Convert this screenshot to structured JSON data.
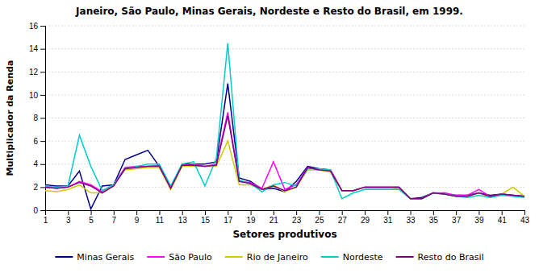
{
  "chart_data": {
    "type": "line",
    "title": "Janeiro, São Paulo, Minas Gerais, Nordeste e Resto do Brasil, em 1999.",
    "xlabel": "Setores produtivos",
    "ylabel": "Multiplicador da Renda",
    "x": [
      1,
      2,
      3,
      4,
      5,
      6,
      7,
      8,
      9,
      10,
      11,
      12,
      13,
      14,
      15,
      16,
      17,
      18,
      19,
      20,
      21,
      22,
      23,
      24,
      25,
      26,
      27,
      28,
      29,
      30,
      31,
      32,
      33,
      34,
      35,
      36,
      37,
      38,
      39,
      40,
      41,
      42,
      43
    ],
    "xlim": [
      1,
      43
    ],
    "xticks": [
      1,
      3,
      5,
      7,
      9,
      11,
      13,
      15,
      17,
      19,
      21,
      23,
      25,
      27,
      29,
      31,
      33,
      35,
      37,
      39,
      41,
      43
    ],
    "ylim": [
      0,
      16
    ],
    "yticks": [
      0,
      2,
      4,
      6,
      8,
      10,
      12,
      14,
      16
    ],
    "grid": "y",
    "legend": "bottom",
    "series": [
      {
        "name": "Minas Gerais",
        "color": "#00008B",
        "values": [
          2.2,
          2.1,
          2.1,
          3.4,
          0.1,
          2.1,
          2.2,
          4.4,
          4.8,
          5.2,
          3.8,
          1.9,
          4.0,
          4.0,
          4.0,
          4.2,
          11.0,
          2.8,
          2.5,
          1.8,
          1.9,
          1.6,
          2.5,
          3.8,
          3.6,
          3.5,
          1.7,
          1.7,
          2.0,
          2.0,
          2.0,
          2.0,
          1.0,
          1.1,
          1.5,
          1.4,
          1.3,
          1.3,
          1.5,
          1.3,
          1.4,
          1.3,
          1.2
        ]
      },
      {
        "name": "São Paulo",
        "color": "#FF00FF",
        "values": [
          2.0,
          1.9,
          2.0,
          2.5,
          2.2,
          1.6,
          2.2,
          3.7,
          3.8,
          3.8,
          3.9,
          2.0,
          3.9,
          4.0,
          3.8,
          4.0,
          8.5,
          2.5,
          2.4,
          1.9,
          4.2,
          1.8,
          2.2,
          3.7,
          3.5,
          3.5,
          1.7,
          1.7,
          2.0,
          2.0,
          2.0,
          2.0,
          1.0,
          1.0,
          1.5,
          1.5,
          1.3,
          1.3,
          1.8,
          1.2,
          1.4,
          1.3,
          1.2
        ]
      },
      {
        "name": "Rio de Janeiro",
        "color": "#CCCC00",
        "values": [
          1.7,
          1.6,
          1.8,
          2.2,
          1.5,
          1.5,
          2.2,
          3.5,
          3.6,
          3.7,
          3.7,
          1.8,
          3.8,
          3.8,
          3.8,
          3.8,
          6.0,
          2.2,
          2.2,
          1.8,
          2.2,
          1.6,
          2.0,
          3.5,
          3.5,
          3.3,
          1.7,
          1.7,
          2.0,
          2.0,
          2.0,
          1.8,
          1.0,
          1.0,
          1.5,
          1.4,
          1.2,
          1.2,
          1.5,
          1.1,
          1.4,
          2.0,
          1.2
        ]
      },
      {
        "name": "Nordeste",
        "color": "#00CCCC",
        "values": [
          2.1,
          2.0,
          2.1,
          6.5,
          3.8,
          1.7,
          2.2,
          3.6,
          3.8,
          4.0,
          4.0,
          2.1,
          4.0,
          4.2,
          2.1,
          4.5,
          14.5,
          2.6,
          2.3,
          1.6,
          2.2,
          2.4,
          2.1,
          3.6,
          3.6,
          3.5,
          1.0,
          1.5,
          1.8,
          1.8,
          1.8,
          1.8,
          1.0,
          1.0,
          1.5,
          1.4,
          1.2,
          1.1,
          1.3,
          1.1,
          1.3,
          1.2,
          1.1
        ]
      },
      {
        "name": "Resto do Brasil",
        "color": "#800080",
        "values": [
          2.0,
          1.9,
          2.0,
          2.4,
          2.1,
          1.5,
          2.1,
          3.6,
          3.7,
          3.8,
          3.8,
          1.9,
          3.9,
          3.9,
          3.8,
          3.9,
          8.2,
          2.5,
          2.3,
          1.8,
          2.1,
          1.7,
          2.0,
          3.7,
          3.5,
          3.4,
          1.7,
          1.7,
          2.0,
          2.0,
          2.0,
          2.0,
          1.0,
          1.0,
          1.5,
          1.4,
          1.2,
          1.2,
          1.5,
          1.2,
          1.4,
          1.3,
          1.2
        ]
      }
    ]
  }
}
